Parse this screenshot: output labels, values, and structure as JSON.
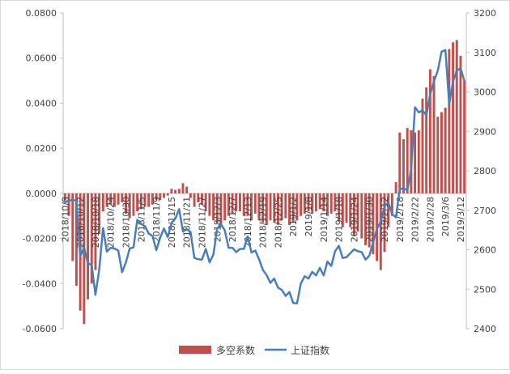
{
  "chart_data": {
    "type": "bar",
    "categories": [
      "2018/10/8",
      "2018/10/9",
      "2018/10/10",
      "2018/10/11",
      "2018/10/12",
      "2018/10/15",
      "2018/10/16",
      "2018/10/17",
      "2018/10/18",
      "2018/10/19",
      "2018/10/22",
      "2018/10/23",
      "2018/10/24",
      "2018/10/25",
      "2018/10/26",
      "2018/10/29",
      "2018/10/30",
      "2018/10/31",
      "2018/11/1",
      "2018/11/2",
      "2018/11/5",
      "2018/11/6",
      "2018/11/7",
      "2018/11/8",
      "2018/11/9",
      "2018/11/12",
      "2018/11/13",
      "2018/11/14",
      "2018/11/15",
      "2018/11/16",
      "2018/11/19",
      "2018/11/20",
      "2018/11/21",
      "2018/11/22",
      "2018/11/23",
      "2018/11/26",
      "2018/11/27",
      "2018/11/28",
      "2018/11/29",
      "2018/11/30",
      "2018/12/3",
      "2018/12/4",
      "2018/12/5",
      "2018/12/6",
      "2018/12/7",
      "2018/12/10",
      "2018/12/11",
      "2018/12/12",
      "2018/12/13",
      "2018/12/14",
      "2018/12/17",
      "2018/12/18",
      "2018/12/19",
      "2018/12/20",
      "2018/12/21",
      "2018/12/24",
      "2018/12/25",
      "2018/12/26",
      "2018/12/27",
      "2018/12/28",
      "2019/1/2",
      "2019/1/3",
      "2019/1/4",
      "2019/1/7",
      "2019/1/8",
      "2019/1/9",
      "2019/1/10",
      "2019/1/11",
      "2019/1/14",
      "2019/1/15",
      "2019/1/16",
      "2019/1/17",
      "2019/1/18",
      "2019/1/21",
      "2019/1/22",
      "2019/1/23",
      "2019/1/24",
      "2019/1/25",
      "2019/1/28",
      "2019/1/29",
      "2019/1/30",
      "2019/1/31",
      "2019/2/1",
      "2019/2/11",
      "2019/2/12",
      "2019/2/13",
      "2019/2/14",
      "2019/2/15",
      "2019/2/18",
      "2019/2/19",
      "2019/2/20",
      "2019/2/21",
      "2019/2/22",
      "2019/2/25",
      "2019/2/26",
      "2019/2/27",
      "2019/2/28",
      "2019/3/1",
      "2019/3/4",
      "2019/3/5",
      "2019/3/6",
      "2019/3/7",
      "2019/3/8",
      "2019/3/11",
      "2019/3/12",
      "2019/3/13"
    ],
    "tick_labels": [
      "2018/10/8",
      "2018/10/12",
      "2018/10/18",
      "2018/10/24",
      "2018/10/30",
      "2018/11/5",
      "2018/11/9",
      "2018/11/15",
      "2018/11/21",
      "2018/11/27",
      "2018/12/3",
      "2018/12/7",
      "2018/12/13",
      "2018/12/19",
      "2018/12/25",
      "2019/1/2",
      "2019/1/8",
      "2019/1/14",
      "2019/1/18",
      "2019/1/24",
      "2019/1/30",
      "2019/2/12",
      "2019/2/18",
      "2019/2/22",
      "2019/2/28",
      "2019/3/6",
      "2019/3/12"
    ],
    "series": [
      {
        "name": "多空系数",
        "type": "bar",
        "axis": "left",
        "color": "#c0504d",
        "values": [
          -0.003,
          -0.01,
          -0.03,
          -0.041,
          -0.052,
          -0.058,
          -0.047,
          -0.04,
          -0.034,
          -0.018,
          -0.008,
          -0.006,
          -0.005,
          -0.006,
          -0.005,
          -0.004,
          -0.009,
          -0.011,
          -0.01,
          -0.008,
          -0.007,
          -0.006,
          -0.006,
          -0.005,
          -0.003,
          -0.003,
          -0.002,
          -0.001,
          0.002,
          0.0015,
          0.002,
          0.0045,
          0.003,
          -0.002,
          -0.006,
          -0.004,
          -0.005,
          -0.008,
          -0.01,
          -0.012,
          -0.013,
          -0.015,
          -0.012,
          -0.01,
          -0.009,
          -0.008,
          -0.008,
          -0.01,
          -0.01,
          -0.012,
          -0.009,
          -0.012,
          -0.013,
          -0.014,
          -0.012,
          -0.013,
          -0.014,
          -0.012,
          -0.011,
          -0.014,
          -0.013,
          -0.012,
          -0.01,
          -0.009,
          -0.008,
          -0.009,
          -0.008,
          -0.007,
          -0.008,
          -0.01,
          -0.009,
          -0.008,
          -0.012,
          -0.015,
          -0.013,
          -0.015,
          -0.019,
          -0.017,
          -0.02,
          -0.023,
          -0.024,
          -0.027,
          -0.03,
          -0.034,
          -0.026,
          -0.015,
          -0.01,
          0.005,
          0.027,
          0.024,
          0.029,
          0.028,
          0.027,
          0.028,
          0.042,
          0.047,
          0.055,
          0.052,
          0.034,
          0.036,
          0.038,
          0.064,
          0.067,
          0.068,
          0.061,
          0.05
        ]
      },
      {
        "name": "上证指数",
        "type": "line",
        "axis": "right",
        "color": "#4a7ebb",
        "values": [
          2720,
          2725,
          2726,
          2725,
          2583,
          2606,
          2566,
          2561,
          2486,
          2550,
          2655,
          2595,
          2605,
          2603,
          2598,
          2543,
          2568,
          2603,
          2606,
          2676,
          2665,
          2660,
          2641,
          2635,
          2599,
          2630,
          2654,
          2632,
          2668,
          2679,
          2703,
          2646,
          2652,
          2645,
          2579,
          2576,
          2575,
          2602,
          2568,
          2588,
          2654,
          2665,
          2649,
          2605,
          2605,
          2594,
          2602,
          2602,
          2634,
          2593,
          2598,
          2576,
          2549,
          2536,
          2516,
          2527,
          2504,
          2498,
          2483,
          2493,
          2465,
          2464,
          2514,
          2533,
          2527,
          2544,
          2535,
          2554,
          2535,
          2570,
          2559,
          2596,
          2610,
          2579,
          2581,
          2591,
          2601,
          2596,
          2594,
          2575,
          2585,
          2618,
          2653,
          2671,
          2710,
          2720,
          2690,
          2682,
          2754,
          2755,
          2751,
          2804,
          2961,
          2948,
          2953,
          2941,
          2994,
          3027,
          3054,
          3102,
          3106,
          2969,
          3026,
          3054,
          3060,
          3027
        ]
      }
    ],
    "y_left": {
      "ylim": [
        -0.06,
        0.08
      ],
      "ticks": [
        -0.06,
        -0.04,
        -0.02,
        0.0,
        0.02,
        0.04,
        0.06,
        0.08
      ],
      "tick_labels": [
        "-0.0600",
        "-0.0400",
        "-0.0200",
        "0.0000",
        "0.0200",
        "0.0400",
        "0.0600",
        "0.0800"
      ]
    },
    "y_right": {
      "ylim": [
        2400,
        3200
      ],
      "ticks": [
        2400,
        2500,
        2600,
        2700,
        2800,
        2900,
        3000,
        3100,
        3200
      ],
      "tick_labels": [
        "2400",
        "2500",
        "2600",
        "2700",
        "2800",
        "2900",
        "3000",
        "3100",
        "3200"
      ]
    },
    "title": "",
    "xlabel": "",
    "grid": false,
    "legend_position": "bottom"
  }
}
